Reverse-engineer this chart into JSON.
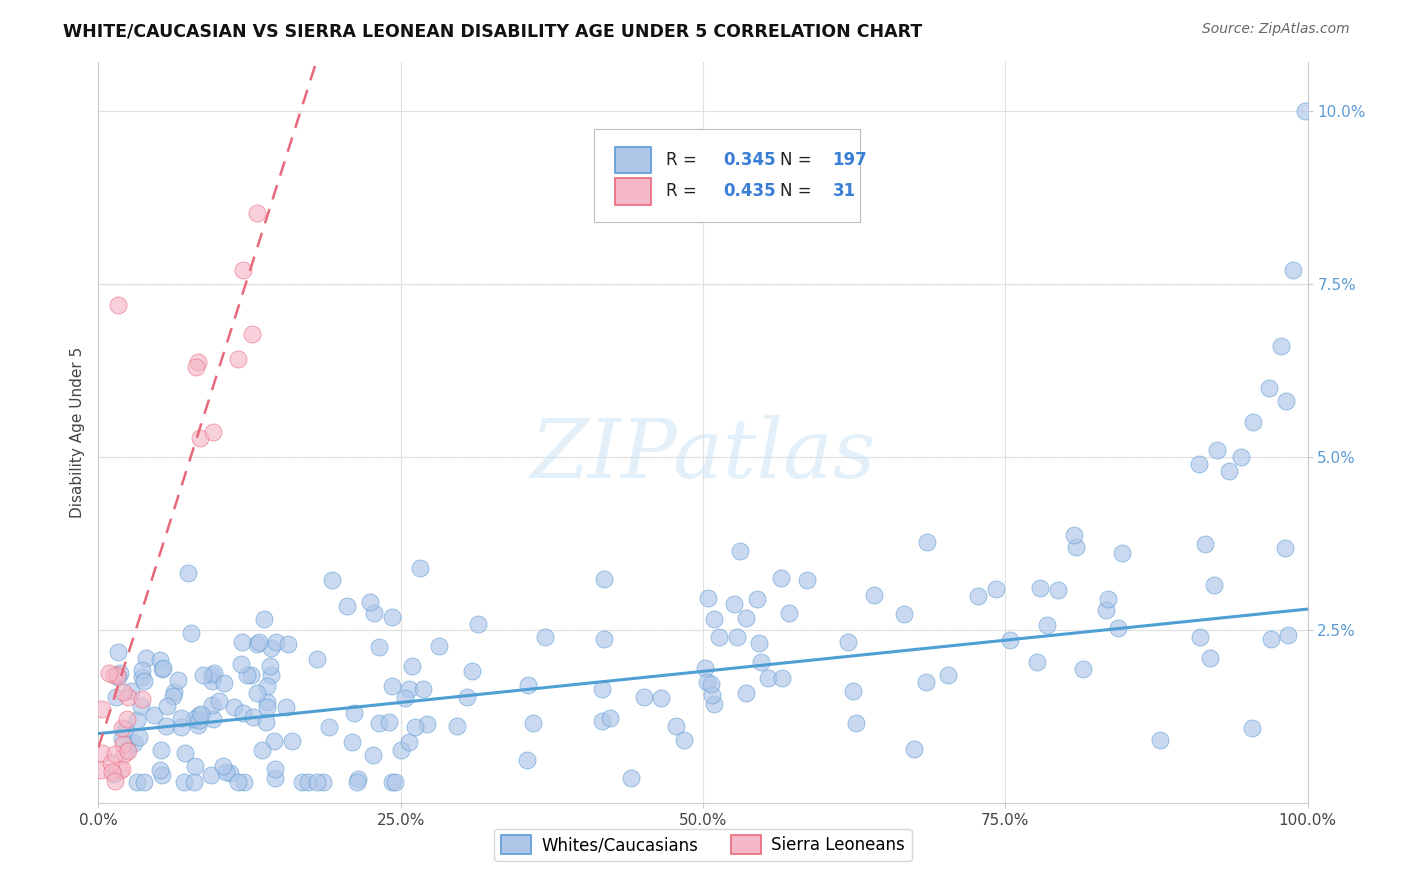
{
  "title": "WHITE/CAUCASIAN VS SIERRA LEONEAN DISABILITY AGE UNDER 5 CORRELATION CHART",
  "source": "Source: ZipAtlas.com",
  "ylabel": "Disability Age Under 5",
  "xlim": [
    0,
    1.0
  ],
  "ylim": [
    0,
    0.107
  ],
  "blue_color": "#aec6e8",
  "blue_edge_color": "#5b9bd5",
  "pink_color": "#f4b8c8",
  "pink_edge_color": "#e8687a",
  "blue_line_color": "#4f9fd4",
  "pink_line_color": "#e8687a",
  "watermark": "ZIPatlas",
  "legend_r_blue": "0.345",
  "legend_n_blue": "197",
  "legend_r_pink": "0.435",
  "legend_n_pink": "31",
  "legend_label_blue": "Whites/Caucasians",
  "legend_label_pink": "Sierra Leoneans",
  "val_color": "#3a7fd5",
  "label_color": "#222222",
  "blue_seed": 42,
  "pink_seed": 99,
  "N_blue": 197,
  "N_pink": 31,
  "blue_intercept": 0.01,
  "blue_slope": 0.018,
  "blue_noise": 0.008,
  "pink_intercept": 0.008,
  "pink_slope": 0.55,
  "pink_noise": 0.006
}
